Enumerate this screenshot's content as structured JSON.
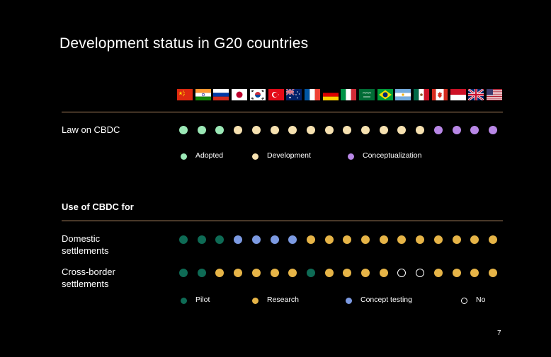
{
  "title": "Development status in G20 countries",
  "countries": [
    "China",
    "India",
    "Russia",
    "Japan",
    "South Korea",
    "Turkey",
    "Australia",
    "France",
    "Germany",
    "Italy",
    "Saudi Arabia",
    "Brazil",
    "Argentina",
    "Mexico",
    "Canada",
    "Indonesia",
    "United Kingdom",
    "United States"
  ],
  "law_section": {
    "row_label": "Law on CBDC",
    "statuses": [
      "adopted",
      "adopted",
      "adopted",
      "development",
      "development",
      "development",
      "development",
      "development",
      "development",
      "development",
      "development",
      "development",
      "development",
      "development",
      "conceptualization",
      "conceptualization",
      "conceptualization",
      "conceptualization"
    ],
    "legend": [
      {
        "key": "adopted",
        "label": "Adopted",
        "color": "#9be8b6"
      },
      {
        "key": "development",
        "label": "Development",
        "color": "#f6e1b0"
      },
      {
        "key": "conceptualization",
        "label": "Conceptualization",
        "color": "#b887e6"
      }
    ]
  },
  "use_section": {
    "heading": "Use of CBDC for",
    "rows": [
      {
        "label": "Domestic\nsettlements",
        "statuses": [
          "pilot",
          "pilot",
          "pilot",
          "concept",
          "concept",
          "concept",
          "concept",
          "research",
          "research",
          "research",
          "research",
          "research",
          "research",
          "research",
          "research",
          "research",
          "research",
          "research"
        ]
      },
      {
        "label": "Cross-border\nsettlements",
        "statuses": [
          "pilot",
          "pilot",
          "research",
          "research",
          "research",
          "research",
          "research",
          "pilot",
          "research",
          "research",
          "research",
          "research",
          "no",
          "no",
          "research",
          "research",
          "research",
          "research"
        ]
      }
    ],
    "legend": [
      {
        "key": "pilot",
        "label": "Pilot",
        "color": "#0e6b55"
      },
      {
        "key": "research",
        "label": "Research",
        "color": "#e6b447"
      },
      {
        "key": "concept",
        "label": "Concept testing",
        "color": "#7c9ae2"
      },
      {
        "key": "no",
        "label": "No",
        "color": "#ffffff"
      }
    ]
  },
  "page_number": "7"
}
